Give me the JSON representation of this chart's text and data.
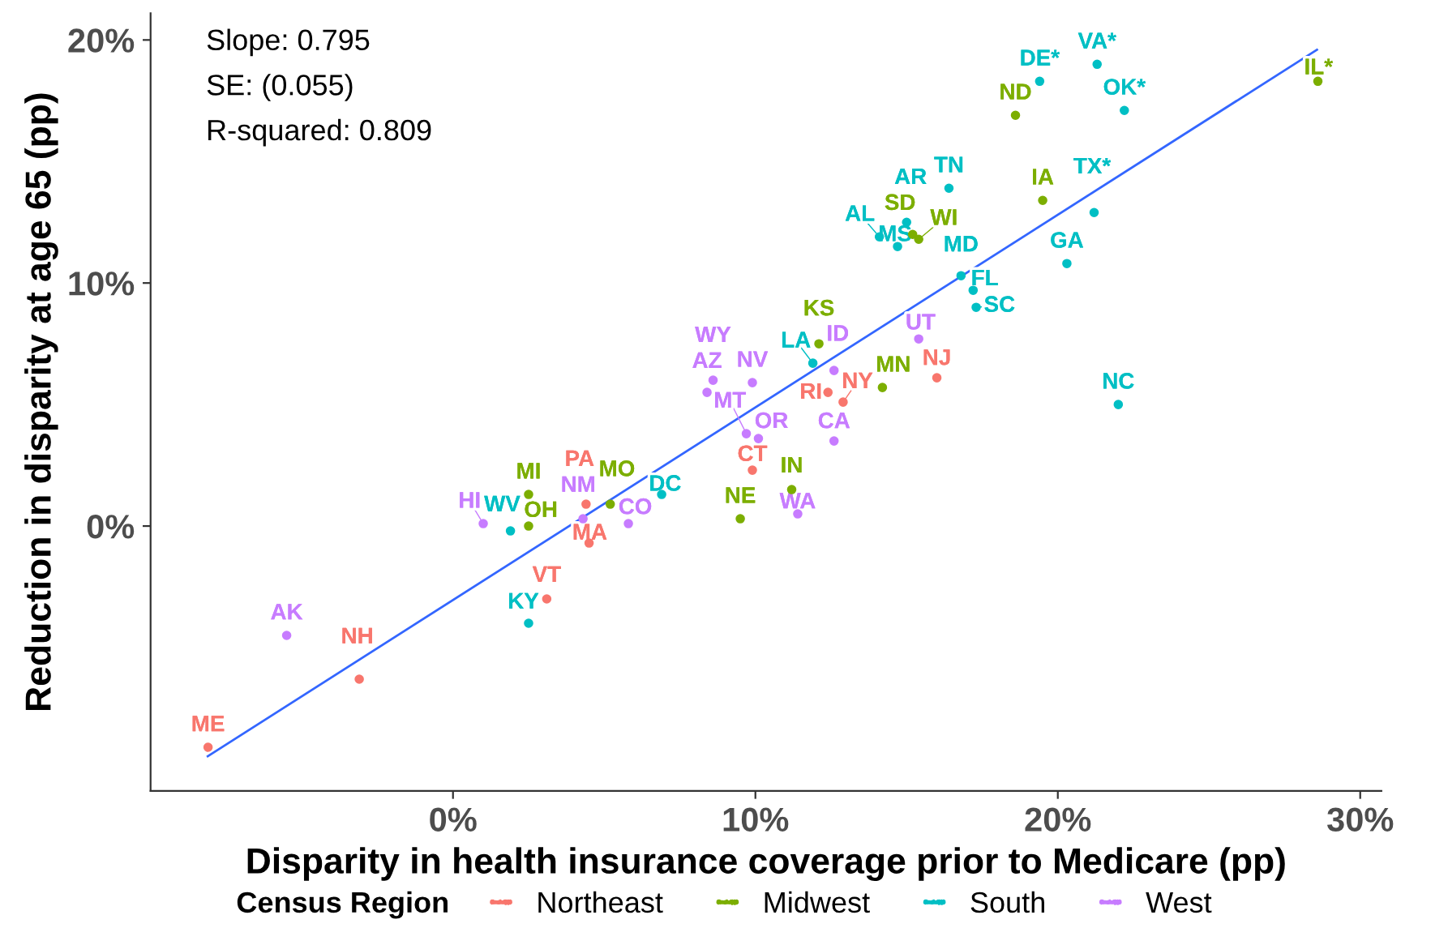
{
  "chart_data": {
    "type": "scatter",
    "xlabel": "Disparity in health insurance coverage prior to Medicare (pp)",
    "ylabel": "Reduction in disparity at age 65 (pp)",
    "legend_title": "Census Region",
    "legend": "bottom",
    "grid": false,
    "xlim": [
      -10,
      30.7
    ],
    "ylim": [
      -10.9,
      21.1
    ],
    "xticks": [
      {
        "value": 0,
        "label": "0%"
      },
      {
        "value": 10,
        "label": "10%"
      },
      {
        "value": 20,
        "label": "20%"
      },
      {
        "value": 30,
        "label": "30%"
      }
    ],
    "yticks": [
      {
        "value": 0,
        "label": "0%"
      },
      {
        "value": 10,
        "label": "10%"
      },
      {
        "value": 20,
        "label": "20%"
      }
    ],
    "annotations": [
      "Slope: 0.795",
      "SE: (0.055)",
      "R-squared: 0.809"
    ],
    "series": [
      {
        "name": "Northeast",
        "color": "#f8766d",
        "marker": "circle",
        "x": [
          -8.1,
          -3.1,
          3.1,
          4.4,
          4.5,
          9.9,
          12.4,
          12.9,
          16.0
        ],
        "values": [
          -9.1,
          -6.3,
          -3.0,
          0.9,
          -0.7,
          2.3,
          5.5,
          5.1,
          6.1
        ],
        "value_labels": [
          "ME",
          "NH",
          "VT",
          "PA",
          "MA",
          "CT",
          "RI",
          "NY",
          "NJ"
        ]
      },
      {
        "name": "Midwest",
        "color": "#7cae00",
        "marker": "circle",
        "x": [
          2.5,
          2.5,
          5.2,
          9.5,
          11.2,
          12.1,
          14.2,
          15.2,
          15.4,
          19.5,
          18.6,
          28.6
        ],
        "values": [
          0.0,
          1.3,
          0.9,
          0.3,
          1.5,
          7.5,
          5.7,
          12.0,
          11.8,
          13.4,
          16.9,
          18.3
        ],
        "value_labels": [
          "OH",
          "MI",
          "MO",
          "NE",
          "IN",
          "KS",
          "MN",
          "SD",
          "WI",
          "IA",
          "ND",
          "IL*"
        ]
      },
      {
        "name": "South",
        "color": "#00bfc4",
        "marker": "circle",
        "x": [
          2.5,
          1.9,
          6.9,
          11.9,
          14.1,
          14.7,
          15.0,
          16.4,
          16.8,
          17.2,
          17.3,
          20.3,
          22.0,
          21.2,
          19.4,
          21.3,
          22.2
        ],
        "values": [
          -4.0,
          -0.2,
          1.3,
          6.7,
          11.9,
          11.5,
          12.5,
          13.9,
          10.3,
          9.7,
          9.0,
          10.8,
          5.0,
          12.9,
          18.3,
          19.0,
          17.1
        ],
        "value_labels": [
          "KY",
          "WV",
          "DC",
          "LA",
          "AL",
          "MS",
          "AR",
          "TN",
          "MD",
          "FL",
          "SC",
          "GA",
          "NC",
          "TX*",
          "DE*",
          "VA*",
          "OK*"
        ]
      },
      {
        "name": "West",
        "color": "#c77cff",
        "marker": "circle",
        "x": [
          -5.5,
          1.0,
          4.3,
          5.8,
          8.4,
          8.6,
          9.9,
          9.7,
          10.1,
          12.6,
          11.4,
          12.6,
          15.4
        ],
        "values": [
          -4.5,
          0.1,
          0.3,
          0.1,
          5.5,
          6.0,
          5.9,
          3.8,
          3.6,
          3.5,
          0.5,
          6.4,
          7.7
        ],
        "value_labels": [
          "AK",
          "HI",
          "NM",
          "CO",
          "AZ",
          "WY",
          "NV",
          "MT",
          "OR",
          "CA",
          "WA",
          "ID",
          "UT"
        ]
      },
      {
        "type": "line",
        "color": "#3366ff",
        "line_style": "solid",
        "marker": "none",
        "x": [
          -8.11,
          28.57
        ],
        "values": [
          -9.47,
          19.6
        ]
      }
    ]
  }
}
